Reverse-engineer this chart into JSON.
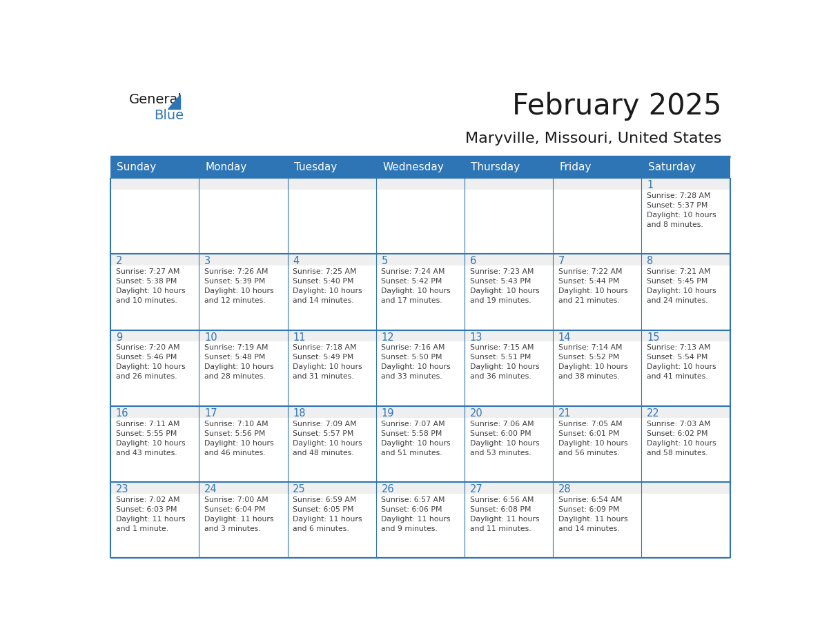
{
  "title": "February 2025",
  "subtitle": "Maryville, Missouri, United States",
  "header_bg": "#2E75B6",
  "header_text_color": "#FFFFFF",
  "cell_bg_white": "#FFFFFF",
  "cell_bg_gray": "#EFEFEF",
  "border_color": "#2E75B6",
  "day_number_color": "#2E75B6",
  "info_text_color": "#3D3D3D",
  "text_color_dark": "#1A1A1A",
  "days_of_week": [
    "Sunday",
    "Monday",
    "Tuesday",
    "Wednesday",
    "Thursday",
    "Friday",
    "Saturday"
  ],
  "weeks": [
    [
      {
        "day": null,
        "info": null
      },
      {
        "day": null,
        "info": null
      },
      {
        "day": null,
        "info": null
      },
      {
        "day": null,
        "info": null
      },
      {
        "day": null,
        "info": null
      },
      {
        "day": null,
        "info": null
      },
      {
        "day": "1",
        "info": "Sunrise: 7:28 AM\nSunset: 5:37 PM\nDaylight: 10 hours\nand 8 minutes."
      }
    ],
    [
      {
        "day": "2",
        "info": "Sunrise: 7:27 AM\nSunset: 5:38 PM\nDaylight: 10 hours\nand 10 minutes."
      },
      {
        "day": "3",
        "info": "Sunrise: 7:26 AM\nSunset: 5:39 PM\nDaylight: 10 hours\nand 12 minutes."
      },
      {
        "day": "4",
        "info": "Sunrise: 7:25 AM\nSunset: 5:40 PM\nDaylight: 10 hours\nand 14 minutes."
      },
      {
        "day": "5",
        "info": "Sunrise: 7:24 AM\nSunset: 5:42 PM\nDaylight: 10 hours\nand 17 minutes."
      },
      {
        "day": "6",
        "info": "Sunrise: 7:23 AM\nSunset: 5:43 PM\nDaylight: 10 hours\nand 19 minutes."
      },
      {
        "day": "7",
        "info": "Sunrise: 7:22 AM\nSunset: 5:44 PM\nDaylight: 10 hours\nand 21 minutes."
      },
      {
        "day": "8",
        "info": "Sunrise: 7:21 AM\nSunset: 5:45 PM\nDaylight: 10 hours\nand 24 minutes."
      }
    ],
    [
      {
        "day": "9",
        "info": "Sunrise: 7:20 AM\nSunset: 5:46 PM\nDaylight: 10 hours\nand 26 minutes."
      },
      {
        "day": "10",
        "info": "Sunrise: 7:19 AM\nSunset: 5:48 PM\nDaylight: 10 hours\nand 28 minutes."
      },
      {
        "day": "11",
        "info": "Sunrise: 7:18 AM\nSunset: 5:49 PM\nDaylight: 10 hours\nand 31 minutes."
      },
      {
        "day": "12",
        "info": "Sunrise: 7:16 AM\nSunset: 5:50 PM\nDaylight: 10 hours\nand 33 minutes."
      },
      {
        "day": "13",
        "info": "Sunrise: 7:15 AM\nSunset: 5:51 PM\nDaylight: 10 hours\nand 36 minutes."
      },
      {
        "day": "14",
        "info": "Sunrise: 7:14 AM\nSunset: 5:52 PM\nDaylight: 10 hours\nand 38 minutes."
      },
      {
        "day": "15",
        "info": "Sunrise: 7:13 AM\nSunset: 5:54 PM\nDaylight: 10 hours\nand 41 minutes."
      }
    ],
    [
      {
        "day": "16",
        "info": "Sunrise: 7:11 AM\nSunset: 5:55 PM\nDaylight: 10 hours\nand 43 minutes."
      },
      {
        "day": "17",
        "info": "Sunrise: 7:10 AM\nSunset: 5:56 PM\nDaylight: 10 hours\nand 46 minutes."
      },
      {
        "day": "18",
        "info": "Sunrise: 7:09 AM\nSunset: 5:57 PM\nDaylight: 10 hours\nand 48 minutes."
      },
      {
        "day": "19",
        "info": "Sunrise: 7:07 AM\nSunset: 5:58 PM\nDaylight: 10 hours\nand 51 minutes."
      },
      {
        "day": "20",
        "info": "Sunrise: 7:06 AM\nSunset: 6:00 PM\nDaylight: 10 hours\nand 53 minutes."
      },
      {
        "day": "21",
        "info": "Sunrise: 7:05 AM\nSunset: 6:01 PM\nDaylight: 10 hours\nand 56 minutes."
      },
      {
        "day": "22",
        "info": "Sunrise: 7:03 AM\nSunset: 6:02 PM\nDaylight: 10 hours\nand 58 minutes."
      }
    ],
    [
      {
        "day": "23",
        "info": "Sunrise: 7:02 AM\nSunset: 6:03 PM\nDaylight: 11 hours\nand 1 minute."
      },
      {
        "day": "24",
        "info": "Sunrise: 7:00 AM\nSunset: 6:04 PM\nDaylight: 11 hours\nand 3 minutes."
      },
      {
        "day": "25",
        "info": "Sunrise: 6:59 AM\nSunset: 6:05 PM\nDaylight: 11 hours\nand 6 minutes."
      },
      {
        "day": "26",
        "info": "Sunrise: 6:57 AM\nSunset: 6:06 PM\nDaylight: 11 hours\nand 9 minutes."
      },
      {
        "day": "27",
        "info": "Sunrise: 6:56 AM\nSunset: 6:08 PM\nDaylight: 11 hours\nand 11 minutes."
      },
      {
        "day": "28",
        "info": "Sunrise: 6:54 AM\nSunset: 6:09 PM\nDaylight: 11 hours\nand 14 minutes."
      },
      {
        "day": null,
        "info": null
      }
    ]
  ],
  "logo_general_color": "#1A1A1A",
  "logo_blue_color": "#2E75B6",
  "logo_triangle_color": "#2E75B6",
  "fig_width": 11.88,
  "fig_height": 9.18,
  "dpi": 100
}
